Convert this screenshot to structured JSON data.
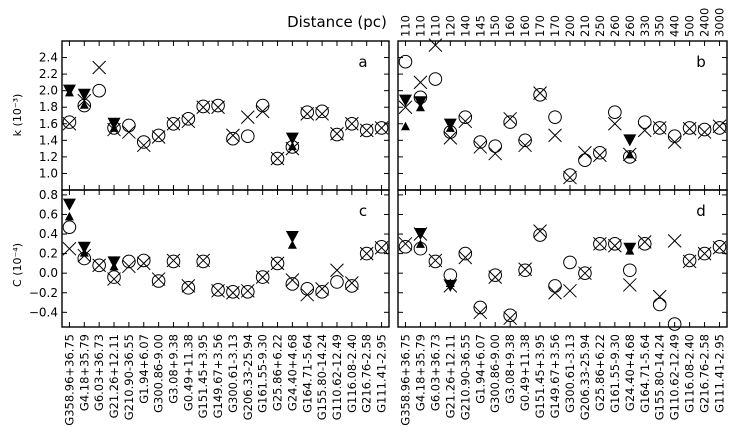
{
  "chart_data": {
    "type": "scatter",
    "top_axis_title": "Distance (pc)",
    "ylabel_top": "k (10⁻³)",
    "ylabel_bottom": "C (10⁻⁴)",
    "categories_left": [
      "G358.96+36.75",
      "G4.18+35.79",
      "G6.03+36.73",
      "G21.26+12.11",
      "G210.90-36.55",
      "G1.94+6.07",
      "G300.86-9.00",
      "G3.08+9.38",
      "G0.49+11.38",
      "G151.45+3.95",
      "G149.67+3.56",
      "G300.61-3.13",
      "G206.33-25.94",
      "G161.55-9.30",
      "G25.86+6.22",
      "G24.40+4.68",
      "G164.71-5.64",
      "G155.80-14.24",
      "G110.62-12.49",
      "G116.08-2.40",
      "G216.76-2.58",
      "G111.41-2.95"
    ],
    "categories_right": [
      "G358.96+36.75",
      "G4.18+35.79",
      "G6.03+36.73",
      "G21.26+12.11",
      "G210.90-36.55",
      "G1.94+6.07",
      "G300.86-9.00",
      "G3.08+9.38",
      "G0.49+11.38",
      "G151.45+3.95",
      "G149.67+3.56",
      "G300.61-3.13",
      "G206.33-25.94",
      "G25.86+6.22",
      "G161.55-9.30",
      "G24.40+4.68",
      "G164.71-5.64",
      "G155.80-14.24",
      "G110.62-12.49",
      "G116.08-2.40",
      "G216.76-2.58",
      "G111.41-2.95"
    ],
    "distances": [
      "110",
      "110",
      "110",
      "120",
      "140",
      "145",
      "150",
      "160",
      "160",
      "170",
      "170",
      "200",
      "210",
      "250",
      "260",
      "260",
      "330",
      "350",
      "440",
      "500",
      "2400",
      "3000"
    ],
    "panels": [
      {
        "label": "a",
        "ylim": [
          0.8,
          2.6
        ],
        "yticks": [
          "1.0",
          "1.2",
          "1.4",
          "1.6",
          "1.8",
          "2.0",
          "2.2",
          "2.4"
        ],
        "yvals": [
          1.0,
          1.2,
          1.4,
          1.6,
          1.8,
          2.0,
          2.2,
          2.4
        ],
        "circles": [
          1.62,
          1.82,
          2.0,
          1.55,
          1.58,
          1.38,
          1.46,
          1.6,
          1.66,
          1.81,
          1.82,
          1.42,
          1.45,
          1.82,
          1.18,
          1.32,
          1.74,
          1.75,
          1.47,
          1.6,
          1.52,
          1.55
        ],
        "crosses": [
          1.6,
          1.88,
          2.28,
          1.53,
          1.5,
          1.34,
          1.44,
          1.6,
          1.63,
          1.8,
          1.8,
          1.46,
          1.68,
          1.75,
          1.18,
          1.3,
          1.72,
          1.72,
          1.48,
          1.6,
          1.52,
          1.55
        ],
        "tri_down": [
          2.0,
          1.95,
          null,
          1.6,
          null,
          null,
          null,
          null,
          null,
          null,
          null,
          null,
          null,
          null,
          null,
          1.42,
          null,
          null,
          null,
          null,
          null,
          null
        ],
        "tri_up": [
          1.98,
          1.83,
          null,
          1.55,
          null,
          null,
          null,
          null,
          null,
          null,
          null,
          null,
          null,
          null,
          null,
          1.33,
          null,
          null,
          null,
          null,
          null,
          null
        ]
      },
      {
        "label": "b",
        "ylim": [
          0.8,
          2.6
        ],
        "yticks": [],
        "yvals": [
          1.0,
          1.2,
          1.4,
          1.6,
          1.8,
          2.0,
          2.2,
          2.4
        ],
        "circles": [
          2.35,
          1.92,
          2.14,
          1.5,
          1.68,
          1.38,
          1.33,
          1.62,
          1.4,
          1.95,
          1.68,
          0.98,
          1.16,
          1.25,
          1.74,
          1.2,
          1.62,
          1.55,
          1.45,
          1.55,
          1.53,
          1.55
        ],
        "crosses": [
          1.8,
          2.1,
          2.55,
          1.43,
          1.63,
          1.32,
          1.24,
          1.66,
          1.34,
          1.97,
          1.46,
          0.95,
          1.25,
          1.22,
          1.6,
          1.23,
          1.52,
          1.55,
          1.38,
          1.54,
          1.5,
          1.57
        ],
        "tri_down": [
          1.88,
          1.86,
          null,
          1.59,
          null,
          null,
          null,
          null,
          null,
          null,
          null,
          null,
          null,
          null,
          null,
          1.4,
          null,
          null,
          null,
          null,
          null,
          null
        ],
        "tri_up": [
          1.57,
          1.8,
          null,
          1.55,
          null,
          null,
          null,
          null,
          null,
          null,
          null,
          null,
          null,
          null,
          null,
          1.23,
          null,
          null,
          null,
          null,
          null,
          null
        ]
      },
      {
        "label": "c",
        "ylim": [
          -0.55,
          0.85
        ],
        "yticks": [
          "−0.4",
          "−0.2",
          "0.0",
          "0.2",
          "0.4",
          "0.6",
          "0.8"
        ],
        "yvals": [
          -0.4,
          -0.2,
          0.0,
          0.2,
          0.4,
          0.6,
          0.8
        ],
        "circles": [
          0.47,
          0.15,
          0.08,
          -0.04,
          0.12,
          0.13,
          -0.08,
          0.12,
          -0.15,
          0.12,
          -0.17,
          -0.19,
          -0.19,
          -0.04,
          0.1,
          -0.11,
          -0.16,
          -0.19,
          -0.09,
          -0.13,
          0.2,
          0.27
        ],
        "crosses": [
          0.25,
          0.18,
          0.08,
          -0.06,
          0.07,
          0.1,
          -0.06,
          0.13,
          -0.13,
          0.13,
          -0.18,
          -0.2,
          -0.18,
          -0.04,
          0.1,
          -0.07,
          -0.22,
          -0.16,
          0.03,
          -0.1,
          0.2,
          0.26
        ],
        "tri_down": [
          0.7,
          0.26,
          null,
          0.11,
          null,
          null,
          null,
          null,
          null,
          null,
          null,
          null,
          null,
          null,
          null,
          0.37,
          null,
          null,
          null,
          null,
          null,
          null
        ],
        "tri_up": [
          0.58,
          0.21,
          null,
          0.07,
          null,
          null,
          null,
          null,
          null,
          null,
          null,
          null,
          null,
          null,
          null,
          0.29,
          null,
          null,
          null,
          null,
          null,
          null
        ]
      },
      {
        "label": "d",
        "ylim": [
          -0.55,
          0.85
        ],
        "yticks": [],
        "yvals": [
          -0.4,
          -0.2,
          0.0,
          0.2,
          0.4,
          0.6,
          0.8
        ],
        "circles": [
          0.27,
          0.25,
          0.12,
          -0.02,
          0.2,
          -0.35,
          -0.02,
          -0.43,
          0.03,
          0.39,
          -0.13,
          0.11,
          0.0,
          0.3,
          0.3,
          0.03,
          0.3,
          -0.32,
          -0.52,
          0.13,
          0.2,
          0.27
        ],
        "crosses": [
          0.3,
          0.4,
          0.13,
          -0.13,
          0.16,
          -0.4,
          -0.04,
          -0.46,
          0.04,
          0.43,
          -0.2,
          -0.18,
          0.0,
          0.3,
          0.28,
          -0.12,
          0.32,
          -0.24,
          0.33,
          0.12,
          0.2,
          0.26
        ],
        "tri_down": [
          null,
          0.4,
          null,
          -0.13,
          null,
          null,
          null,
          null,
          null,
          null,
          null,
          null,
          null,
          null,
          null,
          0.25,
          null,
          null,
          null,
          null,
          null,
          null
        ],
        "tri_up": [
          null,
          0.3,
          null,
          -0.1,
          null,
          null,
          null,
          null,
          null,
          null,
          null,
          null,
          null,
          null,
          null,
          0.23,
          null,
          null,
          null,
          null,
          null,
          null
        ]
      }
    ]
  }
}
